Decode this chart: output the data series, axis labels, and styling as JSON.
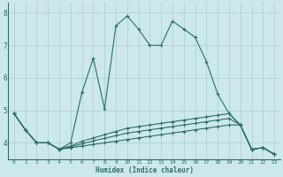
{
  "xlabel": "Humidex (Indice chaleur)",
  "bg_color": "#cce8ec",
  "line_color": "#2d6e65",
  "grid_color": "#aacdd4",
  "xlim": [
    -0.5,
    23.5
  ],
  "ylim": [
    3.5,
    8.3
  ],
  "yticks": [
    4,
    5,
    6,
    7,
    8
  ],
  "xticks": [
    0,
    1,
    2,
    3,
    4,
    5,
    6,
    7,
    8,
    9,
    10,
    11,
    12,
    13,
    14,
    15,
    16,
    17,
    18,
    19,
    20,
    21,
    22,
    23
  ],
  "lines": [
    [
      4.9,
      4.4,
      4.0,
      4.0,
      3.8,
      4.0,
      5.55,
      6.6,
      5.05,
      7.6,
      7.9,
      7.5,
      7.0,
      7.0,
      7.75,
      7.5,
      7.25,
      6.5,
      5.5,
      4.9,
      4.55,
      3.8,
      3.85,
      3.65
    ],
    [
      4.9,
      4.4,
      4.0,
      4.0,
      3.8,
      3.9,
      4.05,
      4.15,
      4.25,
      4.35,
      4.45,
      4.5,
      4.55,
      4.6,
      4.65,
      4.7,
      4.75,
      4.8,
      4.85,
      4.9,
      4.55,
      3.8,
      3.85,
      3.65
    ],
    [
      4.9,
      4.4,
      4.0,
      4.0,
      3.8,
      3.88,
      3.97,
      4.06,
      4.14,
      4.22,
      4.3,
      4.35,
      4.4,
      4.45,
      4.5,
      4.55,
      4.6,
      4.65,
      4.7,
      4.75,
      4.55,
      3.8,
      3.85,
      3.65
    ],
    [
      4.9,
      4.4,
      4.0,
      4.0,
      3.8,
      3.85,
      3.9,
      3.95,
      4.0,
      4.05,
      4.1,
      4.15,
      4.2,
      4.25,
      4.3,
      4.35,
      4.4,
      4.45,
      4.5,
      4.55,
      4.55,
      3.8,
      3.85,
      3.65
    ]
  ]
}
